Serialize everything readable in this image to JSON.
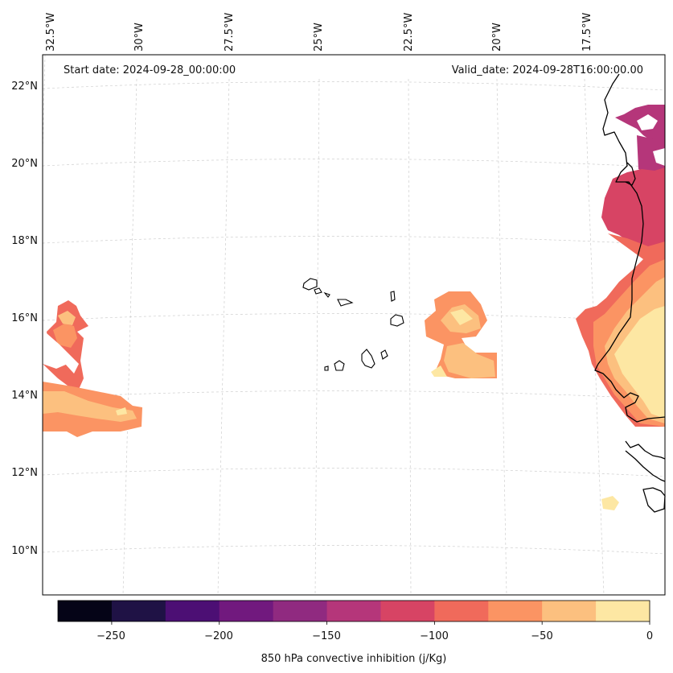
{
  "header": {
    "start_date": "Start date: 2024-09-28_00:00:00",
    "valid_date": "Valid_date: 2024-09-28T16:00:00.00"
  },
  "longitude_labels": [
    "32.5°W",
    "30°W",
    "27.5°W",
    "25°W",
    "22.5°W",
    "20°W",
    "17.5°W"
  ],
  "latitude_labels": [
    "22°N",
    "20°N",
    "18°N",
    "16°N",
    "14°N",
    "12°N",
    "10°N"
  ],
  "colorbar": {
    "label": "850 hPa convective inhibition (j/Kg)",
    "tick_labels": [
      "−250",
      "−200",
      "−150",
      "−100",
      "−50",
      "0"
    ],
    "levels": [
      -275,
      -250,
      -225,
      -200,
      -175,
      -150,
      -125,
      -100,
      -75,
      -50,
      -25,
      0
    ],
    "colors": [
      "#050417",
      "#1f1245",
      "#4c0f74",
      "#71197e",
      "#902a80",
      "#b5367a",
      "#d74464",
      "#f06a5b",
      "#fb9463",
      "#fcc07f",
      "#fde7a3"
    ]
  },
  "colors": {
    "coastline": "#000000",
    "gridline": "#bdbdbd"
  }
}
